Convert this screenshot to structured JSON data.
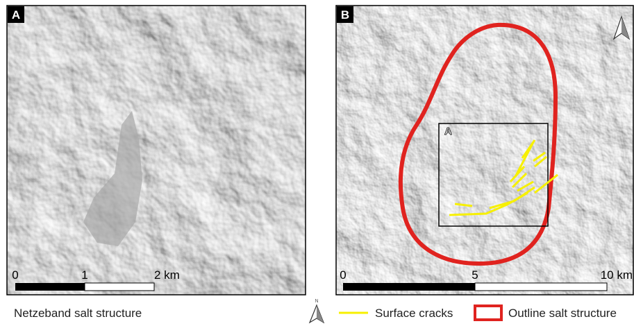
{
  "panels": [
    {
      "label": "A",
      "scale_labels": [
        "0",
        "1",
        "2 km"
      ]
    },
    {
      "label": "B",
      "inset_label": "A",
      "scale_labels": [
        "0",
        "5",
        "10 km"
      ]
    }
  ],
  "caption": "Netzeband salt structure",
  "north_label": "N",
  "legend": [
    "Surface cracks",
    "Outline salt structure"
  ]
}
